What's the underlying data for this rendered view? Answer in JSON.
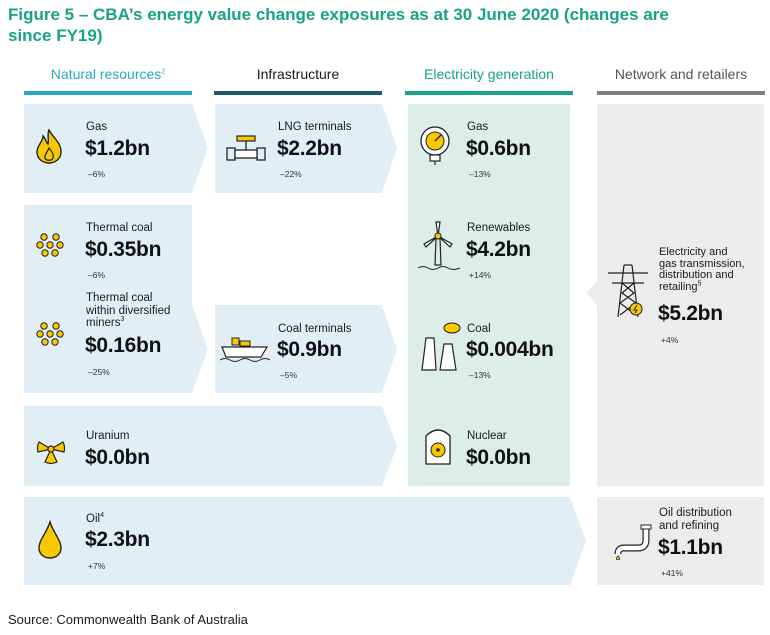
{
  "title": "Figure 5 – CBA’s energy value change exposures as at 30 June 2020 (changes are since FY19)",
  "columns": [
    {
      "label": "Natural resources",
      "sup": "2",
      "color": "#29a8c4"
    },
    {
      "label": "Infrastructure",
      "sup": "",
      "color": "#1b5b6e"
    },
    {
      "label": "Electricity generation",
      "sup": "",
      "color": "#18a383"
    },
    {
      "label": "Network and retailers",
      "sup": "",
      "color": "#7f7f7f"
    }
  ],
  "natural_resources": {
    "gas": {
      "label": "Gas",
      "value": "$1.2bn",
      "change": "–6%"
    },
    "thermal_coal": {
      "label": "Thermal coal",
      "value": "$0.35bn",
      "change": "–6%"
    },
    "thermal_coal_miners": {
      "label_line1": "Thermal coal",
      "label_line2": "within diversified",
      "label_line3": "miners",
      "sup": "3",
      "value": "$0.16bn",
      "change": "–25%"
    },
    "uranium": {
      "label": "Uranium",
      "value": "$0.0bn"
    },
    "oil": {
      "label": "Oil",
      "sup": "4",
      "value": "$2.3bn",
      "change": "+7%"
    }
  },
  "infrastructure": {
    "lng": {
      "label": "LNG terminals",
      "value": "$2.2bn",
      "change": "–22%"
    },
    "coal_terminals": {
      "label": "Coal terminals",
      "value": "$0.9bn",
      "change": "–5%"
    }
  },
  "electricity_generation": {
    "gas": {
      "label": "Gas",
      "value": "$0.6bn",
      "change": "–13%"
    },
    "renewables": {
      "label": "Renewables",
      "value": "$4.2bn",
      "change": "+14%"
    },
    "coal": {
      "label": "Coal",
      "value": "$0.004bn",
      "change": "–13%"
    },
    "nuclear": {
      "label": "Nuclear",
      "value": "$0.0bn"
    }
  },
  "network_retailers": {
    "transmission": {
      "label_line1": "Electricity and",
      "label_line2": "gas transmission,",
      "label_line3": "distribution and",
      "label_line4": "retailing",
      "sup": "5",
      "value": "$5.2bn",
      "change": "+4%"
    },
    "oil_distribution": {
      "label_line1": "Oil distribution",
      "label_line2": "and refining",
      "value": "$1.1bn",
      "change": "+41%"
    }
  },
  "colors": {
    "light_blue": "#e1eef6",
    "light_green": "#dcedea",
    "light_grey": "#ececec",
    "icon_yellow": "#f8c800"
  },
  "source": "Source: Commonwealth Bank of Australia"
}
